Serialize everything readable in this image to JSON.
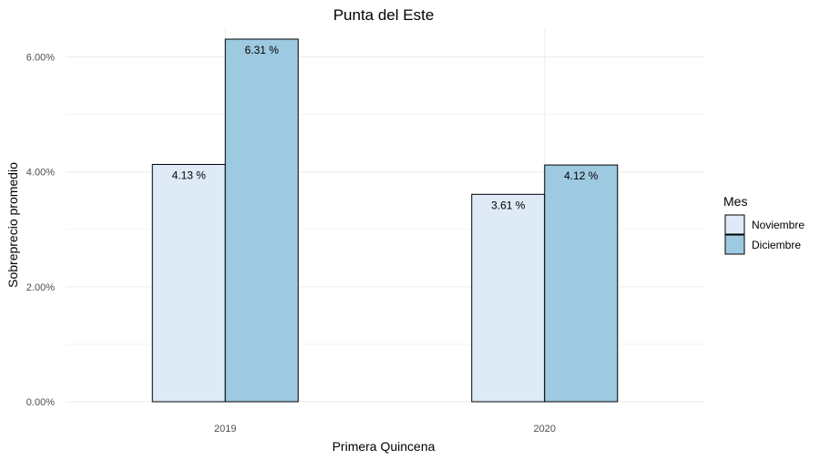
{
  "chart_data": {
    "type": "bar",
    "title": "Punta del Este",
    "xlabel": "Primera Quincena",
    "ylabel": "Sobreprecio promedio",
    "categories": [
      "2019",
      "2020"
    ],
    "series": [
      {
        "name": "Noviembre",
        "color": "#deebf7",
        "values": [
          4.13,
          3.61
        ],
        "labels": [
          "4.13 %",
          "3.61 %"
        ]
      },
      {
        "name": "Diciembre",
        "color": "#9ecae1",
        "values": [
          6.31,
          4.12
        ],
        "labels": [
          "6.31 %",
          "4.12 %"
        ]
      }
    ],
    "ylim": [
      0,
      6.5
    ],
    "yticks": [
      0,
      2,
      4,
      6
    ],
    "ytick_labels": [
      "0.00%",
      "2.00%",
      "4.00%",
      "6.00%"
    ],
    "grid": true,
    "legend": {
      "title": "Mes",
      "position": "right"
    }
  }
}
